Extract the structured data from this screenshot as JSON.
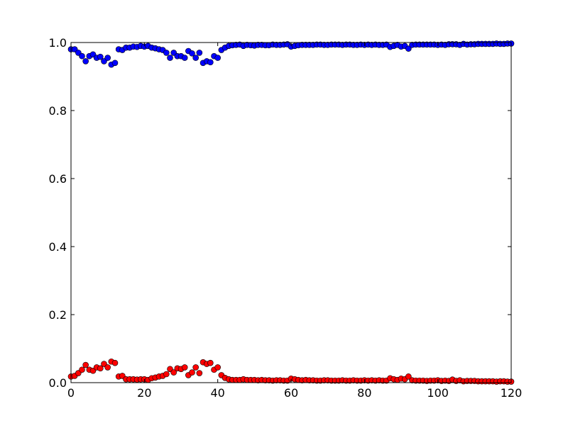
{
  "chart_data": {
    "type": "scatter",
    "title": "",
    "xlabel": "",
    "ylabel": "",
    "xlim": [
      0,
      120
    ],
    "ylim": [
      0.0,
      1.0
    ],
    "xticks": [
      0,
      20,
      40,
      60,
      80,
      100,
      120
    ],
    "xtick_labels": [
      "0",
      "20",
      "40",
      "60",
      "80",
      "100",
      "120"
    ],
    "yticks": [
      0.0,
      0.2,
      0.4,
      0.6,
      0.8,
      1.0
    ],
    "ytick_labels": [
      "0.0",
      "0.2",
      "0.4",
      "0.6",
      "0.8",
      "1.0"
    ],
    "grid": false,
    "legend": "none",
    "series": [
      {
        "color": "#0000ff",
        "x": [
          0,
          1,
          2,
          3,
          4,
          5,
          6,
          7,
          8,
          9,
          10,
          11,
          12,
          13,
          14,
          15,
          16,
          17,
          18,
          19,
          20,
          21,
          22,
          23,
          24,
          25,
          26,
          27,
          28,
          29,
          30,
          31,
          32,
          33,
          34,
          35,
          36,
          37,
          38,
          39,
          40,
          41,
          42,
          43,
          44,
          45,
          46,
          47,
          48,
          49,
          50,
          51,
          52,
          53,
          54,
          55,
          56,
          57,
          58,
          59,
          60,
          61,
          62,
          63,
          64,
          65,
          66,
          67,
          68,
          69,
          70,
          71,
          72,
          73,
          74,
          75,
          76,
          77,
          78,
          79,
          80,
          81,
          82,
          83,
          84,
          85,
          86,
          87,
          88,
          89,
          90,
          91,
          92,
          93,
          94,
          95,
          96,
          97,
          98,
          99,
          100,
          101,
          102,
          103,
          104,
          105,
          106,
          107,
          108,
          109,
          110,
          111,
          112,
          113,
          114,
          115,
          116,
          117,
          118,
          119,
          120
        ],
        "y": [
          0.98,
          0.98,
          0.97,
          0.96,
          0.945,
          0.96,
          0.965,
          0.955,
          0.958,
          0.945,
          0.955,
          0.935,
          0.94,
          0.98,
          0.978,
          0.985,
          0.985,
          0.988,
          0.987,
          0.99,
          0.988,
          0.99,
          0.985,
          0.983,
          0.98,
          0.978,
          0.97,
          0.955,
          0.97,
          0.96,
          0.96,
          0.955,
          0.975,
          0.968,
          0.955,
          0.97,
          0.94,
          0.945,
          0.942,
          0.96,
          0.955,
          0.978,
          0.985,
          0.99,
          0.992,
          0.993,
          0.994,
          0.99,
          0.993,
          0.992,
          0.991,
          0.993,
          0.993,
          0.992,
          0.992,
          0.994,
          0.993,
          0.993,
          0.994,
          0.995,
          0.988,
          0.99,
          0.992,
          0.993,
          0.993,
          0.993,
          0.993,
          0.994,
          0.994,
          0.993,
          0.993,
          0.994,
          0.994,
          0.994,
          0.993,
          0.994,
          0.994,
          0.993,
          0.993,
          0.994,
          0.993,
          0.994,
          0.993,
          0.994,
          0.993,
          0.993,
          0.994,
          0.987,
          0.99,
          0.993,
          0.988,
          0.99,
          0.982,
          0.993,
          0.994,
          0.994,
          0.994,
          0.994,
          0.994,
          0.994,
          0.993,
          0.994,
          0.993,
          0.995,
          0.995,
          0.995,
          0.993,
          0.996,
          0.994,
          0.995,
          0.995,
          0.996,
          0.996,
          0.996,
          0.996,
          0.996,
          0.997,
          0.996,
          0.996,
          0.997,
          0.997
        ]
      },
      {
        "color": "#ff0000",
        "x": [
          0,
          1,
          2,
          3,
          4,
          5,
          6,
          7,
          8,
          9,
          10,
          11,
          12,
          13,
          14,
          15,
          16,
          17,
          18,
          19,
          20,
          21,
          22,
          23,
          24,
          25,
          26,
          27,
          28,
          29,
          30,
          31,
          32,
          33,
          34,
          35,
          36,
          37,
          38,
          39,
          40,
          41,
          42,
          43,
          44,
          45,
          46,
          47,
          48,
          49,
          50,
          51,
          52,
          53,
          54,
          55,
          56,
          57,
          58,
          59,
          60,
          61,
          62,
          63,
          64,
          65,
          66,
          67,
          68,
          69,
          70,
          71,
          72,
          73,
          74,
          75,
          76,
          77,
          78,
          79,
          80,
          81,
          82,
          83,
          84,
          85,
          86,
          87,
          88,
          89,
          90,
          91,
          92,
          93,
          94,
          95,
          96,
          97,
          98,
          99,
          100,
          101,
          102,
          103,
          104,
          105,
          106,
          107,
          108,
          109,
          110,
          111,
          112,
          113,
          114,
          115,
          116,
          117,
          118,
          119,
          120
        ],
        "y": [
          0.018,
          0.02,
          0.028,
          0.038,
          0.052,
          0.038,
          0.035,
          0.045,
          0.042,
          0.055,
          0.045,
          0.062,
          0.058,
          0.018,
          0.02,
          0.01,
          0.01,
          0.01,
          0.009,
          0.01,
          0.01,
          0.008,
          0.013,
          0.015,
          0.018,
          0.02,
          0.025,
          0.04,
          0.03,
          0.042,
          0.04,
          0.045,
          0.022,
          0.03,
          0.045,
          0.028,
          0.06,
          0.055,
          0.058,
          0.038,
          0.045,
          0.022,
          0.014,
          0.01,
          0.008,
          0.008,
          0.008,
          0.01,
          0.008,
          0.008,
          0.008,
          0.007,
          0.008,
          0.007,
          0.007,
          0.006,
          0.007,
          0.007,
          0.006,
          0.006,
          0.012,
          0.01,
          0.008,
          0.007,
          0.008,
          0.007,
          0.007,
          0.006,
          0.006,
          0.007,
          0.007,
          0.006,
          0.006,
          0.006,
          0.007,
          0.006,
          0.006,
          0.007,
          0.006,
          0.006,
          0.007,
          0.006,
          0.007,
          0.006,
          0.007,
          0.006,
          0.006,
          0.013,
          0.01,
          0.008,
          0.012,
          0.01,
          0.018,
          0.007,
          0.006,
          0.006,
          0.006,
          0.005,
          0.006,
          0.006,
          0.007,
          0.005,
          0.006,
          0.005,
          0.009,
          0.005,
          0.007,
          0.004,
          0.005,
          0.005,
          0.005,
          0.004,
          0.004,
          0.004,
          0.004,
          0.004,
          0.003,
          0.004,
          0.004,
          0.003,
          0.003
        ]
      }
    ]
  }
}
